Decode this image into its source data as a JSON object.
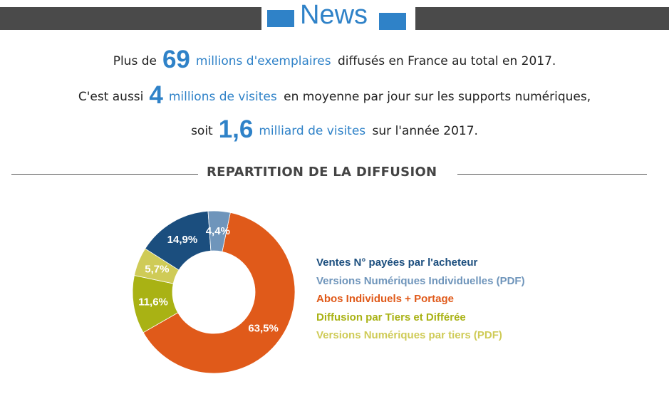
{
  "header": {
    "title": "News"
  },
  "stats": {
    "line1": {
      "prefix": "Plus de",
      "number": "69",
      "highlight": "millions d'exemplaires",
      "suffix": "diffusés en France au total en 2017."
    },
    "line2": {
      "prefix": "C'est aussi",
      "number": "4",
      "highlight": "millions de visites",
      "suffix": "en moyenne par jour sur les supports numériques,"
    },
    "line3": {
      "prefix": "soit",
      "number": "1,6",
      "highlight": "milliard de visites",
      "suffix": "sur l'année 2017."
    }
  },
  "section": {
    "title": "REPARTITION DE LA DIFFUSION"
  },
  "chart_data": {
    "type": "pie",
    "title": "",
    "slices": [
      {
        "label": "Abos Individuels + Portage",
        "value": 63.5,
        "text": "63,5%",
        "color": "#e05a1a"
      },
      {
        "label": "Diffusion par Tiers et Différée",
        "value": 11.6,
        "text": "11,6%",
        "color": "#a9b214"
      },
      {
        "label": "Versions Numériques par tiers (PDF)",
        "value": 5.7,
        "text": "5,7%",
        "color": "#cfcb57"
      },
      {
        "label": "Ventes N° payées par l'acheteur",
        "value": 14.9,
        "text": "14,9%",
        "color": "#1b4e7e"
      },
      {
        "label": "Versions Numériques Individuelles (PDF)",
        "value": 4.4,
        "text": "4,4%",
        "color": "#6f95bb"
      }
    ],
    "legend": [
      {
        "label": "Ventes N° payées par l'acheteur",
        "color": "#1b4e7e"
      },
      {
        "label": "Versions Numériques Individuelles (PDF)",
        "color": "#6f95bb"
      },
      {
        "label": "Abos Individuels + Portage",
        "color": "#e05a1a"
      },
      {
        "label": "Diffusion par Tiers et Différée",
        "color": "#a9b214"
      },
      {
        "label": "Versions Numériques par tiers (PDF)",
        "color": "#cfcb57"
      }
    ],
    "legend_position": "right",
    "hole": "donut"
  }
}
